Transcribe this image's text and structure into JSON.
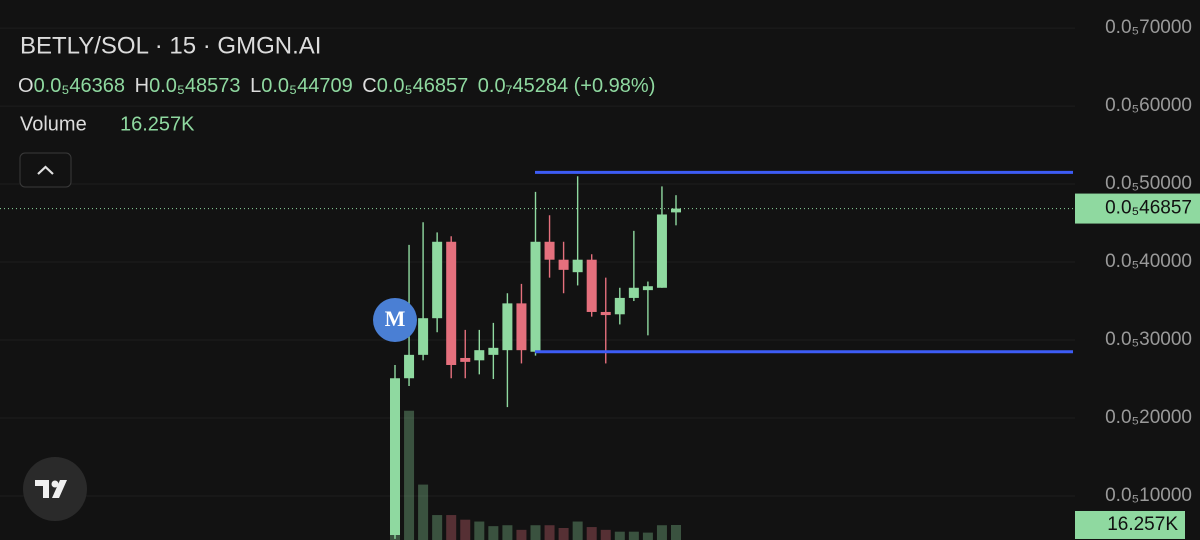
{
  "chart_data": {
    "type": "candlestick",
    "title": "BETLY/SOL · 15 · GMGN.AI",
    "legend": {
      "open_key": "O",
      "open_label": "0.0₅46368",
      "high_key": "H",
      "high_label": "0.0₅48573",
      "low_key": "L",
      "low_label": "0.0₅44709",
      "close_key": "C",
      "close_label": "0.0₅46857",
      "change_label": "0.0₇45284",
      "change_pct_label": "(+0.98%)"
    },
    "open": [
      5e-07,
      2.51e-06,
      2.81e-06,
      3.28e-06,
      4.26e-06,
      2.77e-06,
      2.74e-06,
      2.81e-06,
      2.87e-06,
      3.47e-06,
      2.85e-06,
      4.26e-06,
      4.03e-06,
      3.87e-06,
      4.03e-06,
      3.36e-06,
      3.33e-06,
      3.54e-06,
      3.64e-06,
      3.67e-06,
      4.6368e-06
    ],
    "high": [
      2.68e-06,
      4.22e-06,
      4.51e-06,
      4.38e-06,
      4.33e-06,
      3.13e-06,
      3.13e-06,
      3.22e-06,
      3.6e-06,
      3.72e-06,
      4.9e-06,
      4.6e-06,
      4.26e-06,
      5.1e-06,
      4.1e-06,
      3.8e-06,
      3.67e-06,
      4.4e-06,
      3.75e-06,
      4.97e-06,
      4.8573e-06
    ],
    "low": [
      4.5e-07,
      2.41e-06,
      2.74e-06,
      3.1e-06,
      2.51e-06,
      2.51e-06,
      2.56e-06,
      2.5e-06,
      2.14e-06,
      2.7e-06,
      2.8e-06,
      3.8e-06,
      3.6e-06,
      3.7e-06,
      3.3e-06,
      2.7e-06,
      3.2e-06,
      3.5e-06,
      3.06e-06,
      3.67e-06,
      4.4709e-06
    ],
    "close": [
      2.51e-06,
      2.81e-06,
      3.28e-06,
      4.26e-06,
      2.68e-06,
      2.72e-06,
      2.87e-06,
      2.9e-06,
      3.47e-06,
      2.87e-06,
      4.26e-06,
      4.03e-06,
      3.9e-06,
      4.03e-06,
      3.36e-06,
      3.32e-06,
      3.54e-06,
      3.67e-06,
      3.69e-06,
      4.61e-06,
      4.6857e-06
    ],
    "up_color": "#8fd9a0",
    "down_color": "#e5707d",
    "volume": {
      "name": "Volume",
      "last_label": "16.257K",
      "values": [
        160000,
        140000,
        60000,
        27000,
        27000,
        22000,
        20000,
        15000,
        16000,
        11000,
        16000,
        16000,
        13000,
        20000,
        14000,
        11000,
        9000,
        9000,
        8000,
        16000,
        16257
      ]
    },
    "last_price_label": "0.0₅46857",
    "ylim": [
      4.36e-07,
      7.36e-06
    ],
    "yticks": [
      {
        "value": 7e-06,
        "label": "0.0₅70000"
      },
      {
        "value": 6e-06,
        "label": "0.0₅60000"
      },
      {
        "value": 5e-06,
        "label": "0.0₅50000"
      },
      {
        "value": 4e-06,
        "label": "0.0₅40000"
      },
      {
        "value": 3e-06,
        "label": "0.0₅30000"
      },
      {
        "value": 2e-06,
        "label": "0.0₅20000"
      },
      {
        "value": 1e-06,
        "label": "0.0₅10000"
      }
    ],
    "grid": true,
    "levels": [
      {
        "value": 5.15e-06,
        "color": "#3d5cf5"
      },
      {
        "value": 2.85e-06,
        "color": "#3d5cf5"
      }
    ],
    "marker_label": "M"
  }
}
